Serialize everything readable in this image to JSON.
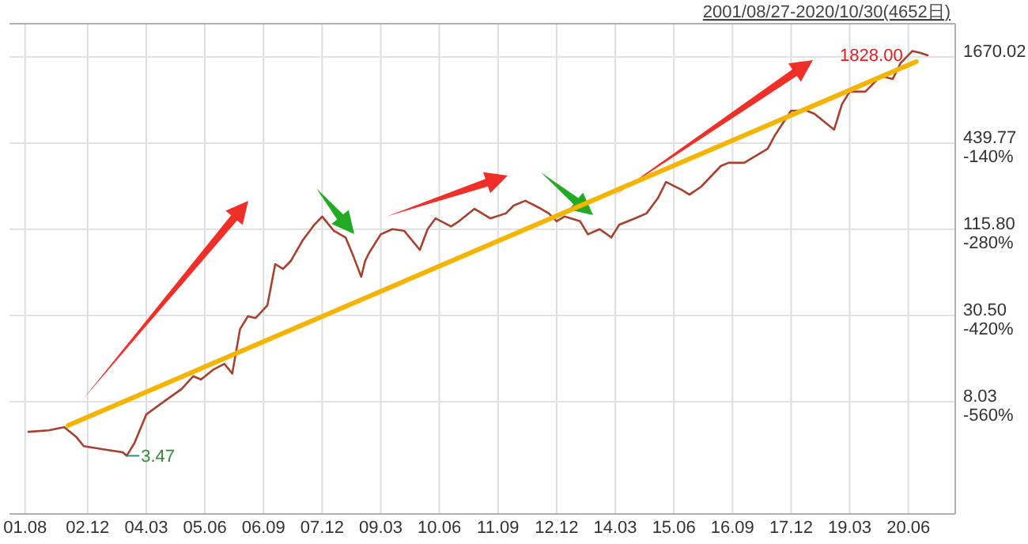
{
  "chart_data": {
    "type": "line",
    "title": "2001/08/27-2020/10/30(4652日)",
    "x": [
      "2001-08-27",
      "2002-02",
      "2002-06",
      "2002-09",
      "2002-11",
      "2003-04",
      "2003-09",
      "2003-10",
      "2003-12",
      "2004-03",
      "2004-08",
      "2004-12",
      "2005-03",
      "2005-05",
      "2005-08",
      "2005-11",
      "2006-01",
      "2006-03",
      "2006-05",
      "2006-07",
      "2006-10",
      "2006-12",
      "2007-02",
      "2007-04",
      "2007-07",
      "2007-10",
      "2007-12",
      "2008-03",
      "2008-06",
      "2008-08",
      "2008-10",
      "2008-11",
      "2008-12",
      "2009-03",
      "2009-06",
      "2009-09",
      "2009-11",
      "2010-01",
      "2010-03",
      "2010-05",
      "2010-09",
      "2010-11",
      "2011-03",
      "2011-07",
      "2011-11",
      "2012-01",
      "2012-04",
      "2012-08",
      "2012-10",
      "2012-12",
      "2013-02",
      "2013-06",
      "2013-08",
      "2013-11",
      "2014-02",
      "2014-04",
      "2014-08",
      "2014-11",
      "2015-02",
      "2015-04",
      "2015-08",
      "2015-10",
      "2016-01",
      "2016-06",
      "2016-08",
      "2016-12",
      "2017-06",
      "2017-08",
      "2017-12",
      "2018-04",
      "2018-06",
      "2018-10",
      "2018-11",
      "2019-01",
      "2019-03",
      "2019-07",
      "2019-11",
      "2020-02",
      "2020-04",
      "2020-07",
      "2020-09",
      "2020-10-30"
    ],
    "series": [
      {
        "color": "#a8402e",
        "values": [
          5.03,
          5.15,
          5.41,
          4.67,
          4.03,
          3.84,
          3.66,
          3.47,
          4.24,
          6.58,
          8.21,
          9.74,
          11.9,
          11.3,
          13.1,
          14.4,
          12.4,
          24.7,
          30.1,
          29.3,
          35.7,
          67.5,
          62.7,
          70.9,
          97.4,
          124,
          141,
          113,
          102,
          76.2,
          55.5,
          70.9,
          80.1,
          107,
          116,
          113,
          97.4,
          84.1,
          116,
          137,
          121,
          131,
          159,
          137,
          148,
          167,
          180,
          159,
          148,
          131,
          141,
          131,
          107,
          116,
          102,
          124,
          137,
          148,
          189,
          241,
          213,
          198,
          224,
          308,
          324,
          324,
          403,
          503,
          726,
          726,
          691,
          568,
          541,
          801,
          975,
          975,
          1245,
          1185,
          1514,
          1828,
          1780,
          1711
        ]
      },
      {
        "type": "line",
        "color": "#f5b400",
        "x": [
          "2002-07",
          "2020-08"
        ],
        "values": [
          5.55,
          1551
        ]
      }
    ],
    "log": "y",
    "xlim": [
      "2001-04-01",
      "2021-06-01"
    ],
    "xticks": [
      {
        "value": "2001-08",
        "label": "01.08"
      },
      {
        "value": "2002-12",
        "label": "02.12"
      },
      {
        "value": "2004-03",
        "label": "04.03"
      },
      {
        "value": "2005-06",
        "label": "05.06"
      },
      {
        "value": "2006-09",
        "label": "06.09"
      },
      {
        "value": "2007-12",
        "label": "07.12"
      },
      {
        "value": "2009-03",
        "label": "09.03"
      },
      {
        "value": "2010-06",
        "label": "10.06"
      },
      {
        "value": "2011-09",
        "label": "11.09"
      },
      {
        "value": "2012-12",
        "label": "12.12"
      },
      {
        "value": "2014-03",
        "label": "14.03"
      },
      {
        "value": "2015-06",
        "label": "15.06"
      },
      {
        "value": "2016-09",
        "label": "16.09"
      },
      {
        "value": "2017-12",
        "label": "17.12"
      },
      {
        "value": "2019-03",
        "label": "19.03"
      },
      {
        "value": "2020-06",
        "label": "20.06"
      }
    ],
    "ylim": [
      1.41,
      2790
    ],
    "yticks": [
      8.03,
      {
        "value": 30.5,
        "label": "30.50"
      },
      {
        "value": 115.8,
        "label": "115.80"
      },
      439.77,
      1670.02
    ],
    "y2lim": [
      -742,
      54
    ],
    "y2ticks": [
      {
        "value": -140,
        "label": "-140%"
      },
      {
        "value": -280,
        "label": "-280%"
      },
      {
        "value": -420,
        "label": "-420%"
      },
      {
        "value": -560,
        "label": "-560%"
      }
    ],
    "grid": true,
    "annotations": [
      {
        "text": "3.47",
        "x": "2003-10",
        "y": 3.47
      },
      {
        "text": "1828.00",
        "x": "2020-07",
        "y": 1828
      }
    ]
  }
}
